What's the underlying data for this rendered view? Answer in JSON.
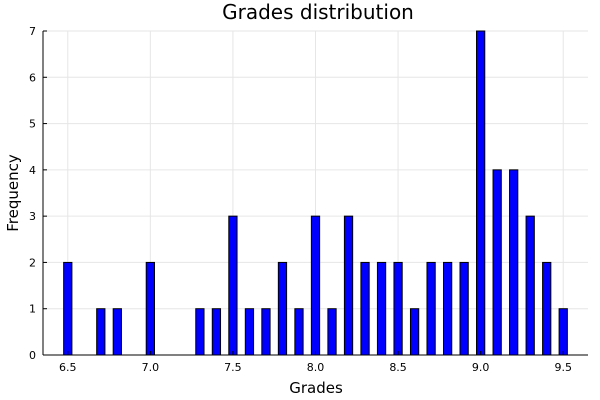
{
  "chart_data": {
    "type": "bar",
    "title": "Grades distribution",
    "xlabel": "Grades",
    "ylabel": "Frequency",
    "xlim": [
      6.35,
      9.65
    ],
    "ylim": [
      0,
      7
    ],
    "grid": true,
    "legend": "none",
    "bar_color": "#0000ff",
    "bar_width": 0.05,
    "x_ticks": [
      6.5,
      7.0,
      7.5,
      8.0,
      8.5,
      9.0,
      9.5
    ],
    "x_tick_labels": [
      "6.5",
      "7.0",
      "7.5",
      "8.0",
      "8.5",
      "9.0",
      "9.5"
    ],
    "y_ticks": [
      0,
      1,
      2,
      3,
      4,
      5,
      6,
      7
    ],
    "y_tick_labels": [
      "0",
      "1",
      "2",
      "3",
      "4",
      "5",
      "6",
      "7"
    ],
    "x": [
      6.5,
      6.7,
      6.8,
      7.0,
      7.3,
      7.4,
      7.5,
      7.6,
      7.7,
      7.8,
      7.9,
      8.0,
      8.1,
      8.2,
      8.3,
      8.4,
      8.5,
      8.6,
      8.7,
      8.8,
      8.9,
      9.0,
      9.1,
      9.2,
      9.3,
      9.4,
      9.5
    ],
    "values": [
      2,
      1,
      1,
      2,
      1,
      1,
      3,
      1,
      1,
      2,
      1,
      3,
      1,
      3,
      2,
      2,
      2,
      1,
      2,
      2,
      2,
      7,
      4,
      4,
      3,
      2,
      1
    ]
  }
}
